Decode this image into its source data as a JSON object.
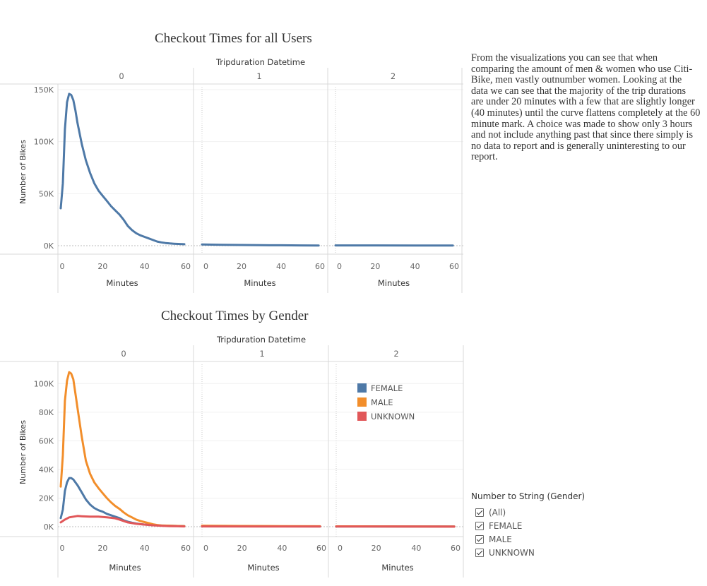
{
  "description": "From the visualizations you can see that when comparing the amount of men & women who use Citi-Bike, men vastly outnumber women. Looking at the data we can see that the majority of the trip durations are under 20 minutes with a few that are slightly longer (40 minutes) until the curve flattens completely at the 60 minute mark. A choice was made to show only 3 hours and not include anything past that since there simply is no data to report and is generally uninteresting to our report.",
  "filter": {
    "title": "Number to String (Gender)",
    "items": [
      {
        "label": "(All)",
        "checked": true
      },
      {
        "label": "FEMALE",
        "checked": true
      },
      {
        "label": "MALE",
        "checked": true
      },
      {
        "label": "UNKNOWN",
        "checked": true
      }
    ]
  },
  "chart_data": [
    {
      "type": "line",
      "title": "Checkout Times for all Users",
      "column_header_title": "Tripduration Datetime",
      "panels": [
        "0",
        "1",
        "2"
      ],
      "xlabel": "Minutes",
      "ylabel": "Number of Bikes",
      "xlim": [
        0,
        60
      ],
      "x_ticks": [
        0,
        20,
        40,
        60
      ],
      "ylim": [
        0,
        150000
      ],
      "y_ticks": [
        {
          "value": 0,
          "label": "0K"
        },
        {
          "value": 50000,
          "label": "50K"
        },
        {
          "value": 100000,
          "label": "100K"
        },
        {
          "value": 150000,
          "label": "150K"
        }
      ],
      "series": [
        {
          "name": "",
          "color": "#4e79a7",
          "panels": [
            [
              [
                0,
                36000
              ],
              [
                1,
                60000
              ],
              [
                2,
                112000
              ],
              [
                3,
                138000
              ],
              [
                4,
                146000
              ],
              [
                5,
                145000
              ],
              [
                6,
                140000
              ],
              [
                7,
                130000
              ],
              [
                8,
                118000
              ],
              [
                10,
                98000
              ],
              [
                12,
                82000
              ],
              [
                14,
                70000
              ],
              [
                16,
                60000
              ],
              [
                18,
                53000
              ],
              [
                20,
                48000
              ],
              [
                22,
                43000
              ],
              [
                24,
                38000
              ],
              [
                26,
                34000
              ],
              [
                28,
                30000
              ],
              [
                30,
                25000
              ],
              [
                32,
                19000
              ],
              [
                34,
                15000
              ],
              [
                36,
                12000
              ],
              [
                38,
                10000
              ],
              [
                40,
                8500
              ],
              [
                42,
                7000
              ],
              [
                44,
                5500
              ],
              [
                46,
                4000
              ],
              [
                48,
                3200
              ],
              [
                50,
                2600
              ],
              [
                52,
                2200
              ],
              [
                54,
                1900
              ],
              [
                56,
                1700
              ],
              [
                58,
                1500
              ],
              [
                59,
                1400
              ]
            ],
            [
              [
                0,
                1200
              ],
              [
                10,
                900
              ],
              [
                20,
                700
              ],
              [
                30,
                500
              ],
              [
                40,
                400
              ],
              [
                50,
                300
              ],
              [
                59,
                200
              ]
            ],
            [
              [
                0,
                300
              ],
              [
                20,
                250
              ],
              [
                40,
                200
              ],
              [
                59,
                150
              ]
            ]
          ]
        }
      ]
    },
    {
      "type": "line",
      "title": "Checkout Times by Gender",
      "column_header_title": "Tripduration Datetime",
      "panels": [
        "0",
        "1",
        "2"
      ],
      "xlabel": "Minutes",
      "ylabel": "Number of Bikes",
      "xlim": [
        0,
        60
      ],
      "x_ticks": [
        0,
        20,
        40,
        60
      ],
      "ylim": [
        0,
        110000
      ],
      "y_ticks": [
        {
          "value": 0,
          "label": "0K"
        },
        {
          "value": 20000,
          "label": "20K"
        },
        {
          "value": 40000,
          "label": "40K"
        },
        {
          "value": 60000,
          "label": "60K"
        },
        {
          "value": 80000,
          "label": "80K"
        },
        {
          "value": 100000,
          "label": "100K"
        }
      ],
      "legend": {
        "position": "top-right",
        "panel": 2
      },
      "series": [
        {
          "name": "FEMALE",
          "color": "#4e79a7",
          "panels": [
            [
              [
                0,
                6000
              ],
              [
                1,
                12000
              ],
              [
                2,
                25000
              ],
              [
                3,
                31000
              ],
              [
                4,
                34000
              ],
              [
                5,
                34000
              ],
              [
                6,
                33000
              ],
              [
                8,
                29000
              ],
              [
                10,
                24000
              ],
              [
                12,
                19000
              ],
              [
                14,
                15500
              ],
              [
                16,
                13000
              ],
              [
                18,
                11500
              ],
              [
                20,
                10500
              ],
              [
                22,
                9000
              ],
              [
                24,
                8000
              ],
              [
                26,
                7000
              ],
              [
                28,
                6000
              ],
              [
                30,
                4500
              ],
              [
                32,
                3500
              ],
              [
                34,
                2800
              ],
              [
                36,
                2200
              ],
              [
                38,
                1800
              ],
              [
                40,
                1500
              ],
              [
                44,
                1100
              ],
              [
                48,
                800
              ],
              [
                52,
                600
              ],
              [
                56,
                500
              ],
              [
                59,
                400
              ]
            ],
            [
              [
                0,
                400
              ],
              [
                20,
                300
              ],
              [
                40,
                250
              ],
              [
                59,
                200
              ]
            ],
            [
              [
                0,
                200
              ],
              [
                30,
                150
              ],
              [
                59,
                100
              ]
            ]
          ]
        },
        {
          "name": "MALE",
          "color": "#f28e2b",
          "panels": [
            [
              [
                0,
                28000
              ],
              [
                1,
                50000
              ],
              [
                2,
                88000
              ],
              [
                3,
                102000
              ],
              [
                4,
                108000
              ],
              [
                5,
                107000
              ],
              [
                6,
                103000
              ],
              [
                7,
                93000
              ],
              [
                8,
                83000
              ],
              [
                10,
                63000
              ],
              [
                12,
                46000
              ],
              [
                14,
                37000
              ],
              [
                16,
                31000
              ],
              [
                18,
                27000
              ],
              [
                20,
                23500
              ],
              [
                22,
                20000
              ],
              [
                24,
                17000
              ],
              [
                26,
                14500
              ],
              [
                28,
                12500
              ],
              [
                30,
                10000
              ],
              [
                32,
                8000
              ],
              [
                34,
                6500
              ],
              [
                36,
                5000
              ],
              [
                38,
                4000
              ],
              [
                40,
                3200
              ],
              [
                42,
                2500
              ],
              [
                44,
                1700
              ],
              [
                46,
                1200
              ],
              [
                48,
                900
              ],
              [
                52,
                700
              ],
              [
                56,
                500
              ],
              [
                59,
                400
              ]
            ],
            [
              [
                0,
                700
              ],
              [
                20,
                500
              ],
              [
                40,
                400
              ],
              [
                59,
                300
              ]
            ],
            [
              [
                0,
                250
              ],
              [
                30,
                200
              ],
              [
                59,
                150
              ]
            ]
          ]
        },
        {
          "name": "UNKNOWN",
          "color": "#e15759",
          "panels": [
            [
              [
                0,
                3000
              ],
              [
                2,
                5000
              ],
              [
                4,
                6500
              ],
              [
                6,
                7000
              ],
              [
                8,
                7500
              ],
              [
                10,
                7300
              ],
              [
                14,
                7000
              ],
              [
                18,
                7000
              ],
              [
                20,
                6800
              ],
              [
                22,
                6500
              ],
              [
                24,
                6200
              ],
              [
                26,
                5800
              ],
              [
                28,
                5000
              ],
              [
                30,
                4000
              ],
              [
                32,
                3000
              ],
              [
                34,
                2500
              ],
              [
                36,
                2000
              ],
              [
                40,
                1500
              ],
              [
                44,
                1000
              ],
              [
                48,
                600
              ],
              [
                52,
                400
              ],
              [
                56,
                300
              ],
              [
                59,
                200
              ]
            ],
            [
              [
                0,
                200
              ],
              [
                30,
                150
              ],
              [
                59,
                100
              ]
            ],
            [
              [
                0,
                100
              ],
              [
                30,
                80
              ],
              [
                59,
                60
              ]
            ]
          ]
        }
      ]
    }
  ]
}
